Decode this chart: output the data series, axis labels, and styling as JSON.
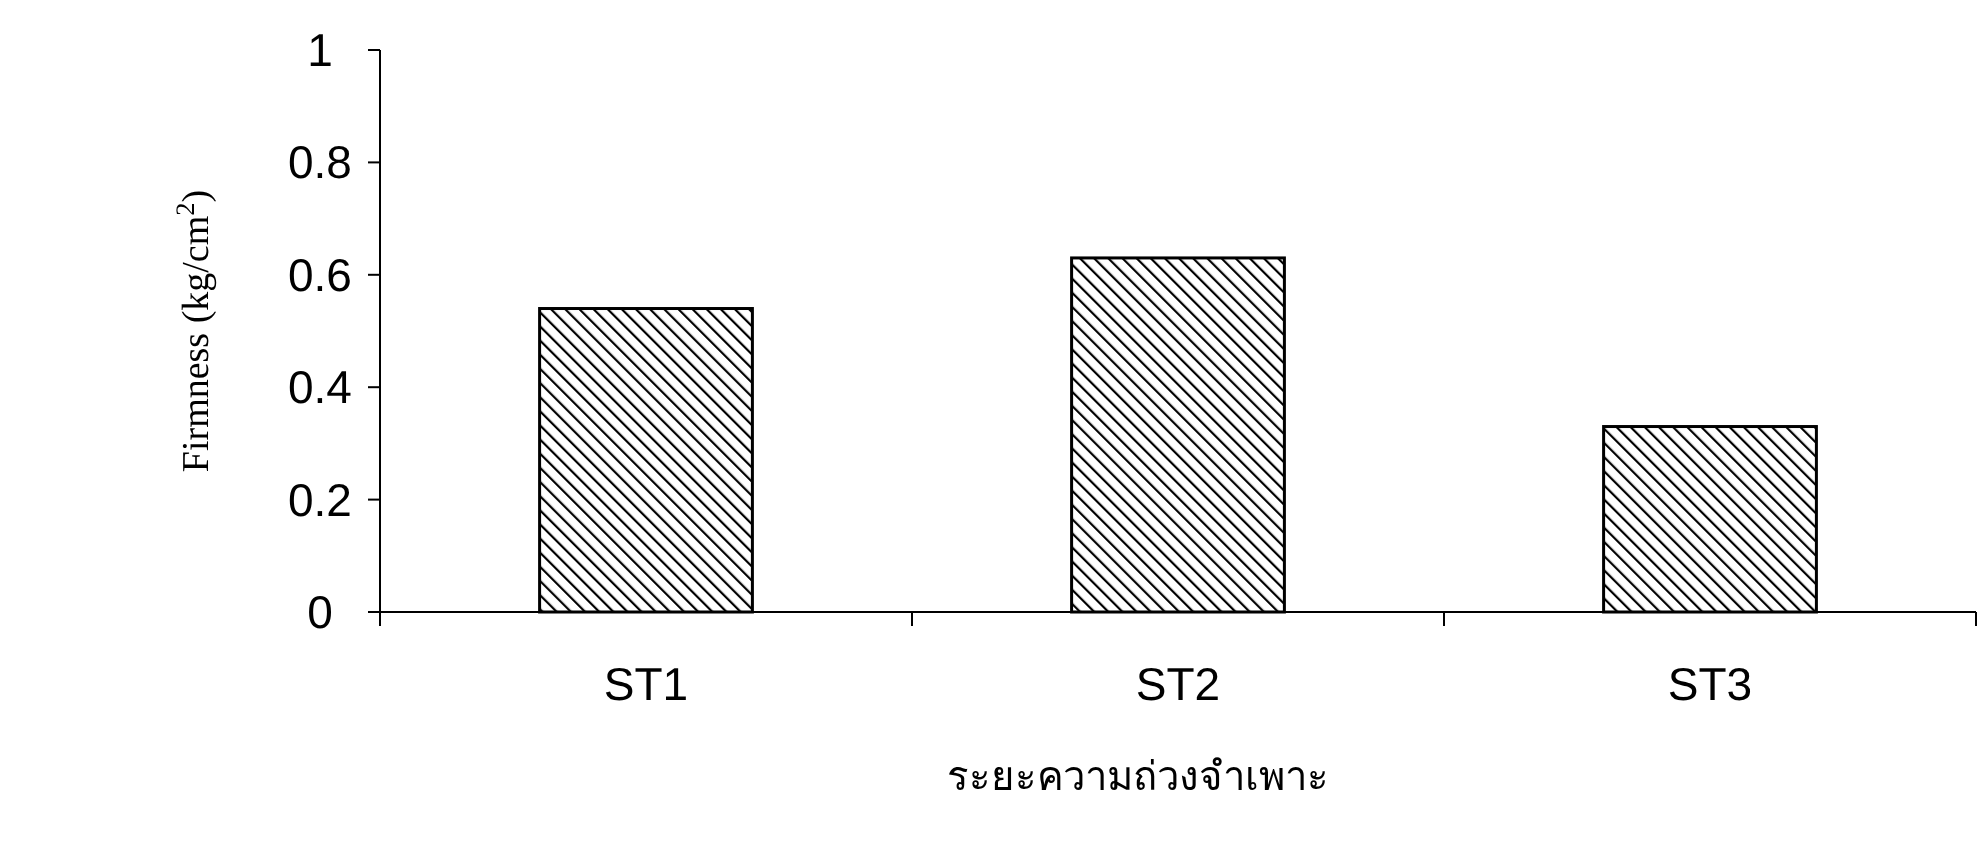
{
  "chart_data": {
    "type": "bar",
    "xlabel": "ระยะความถ่วงจำเพาะ",
    "ylabel": "Firmness (kg/cm$^{2}$)",
    "categories": [
      "ST1",
      "ST2",
      "ST3"
    ],
    "series": [
      {
        "color": "#000000",
        "values": [
          0.54,
          0.63,
          0.33
        ]
      }
    ],
    "ylim": [
      0,
      1
    ],
    "yticks": [
      0,
      0.2,
      0.4,
      0.6,
      0.8,
      1
    ],
    "grid": false
  }
}
